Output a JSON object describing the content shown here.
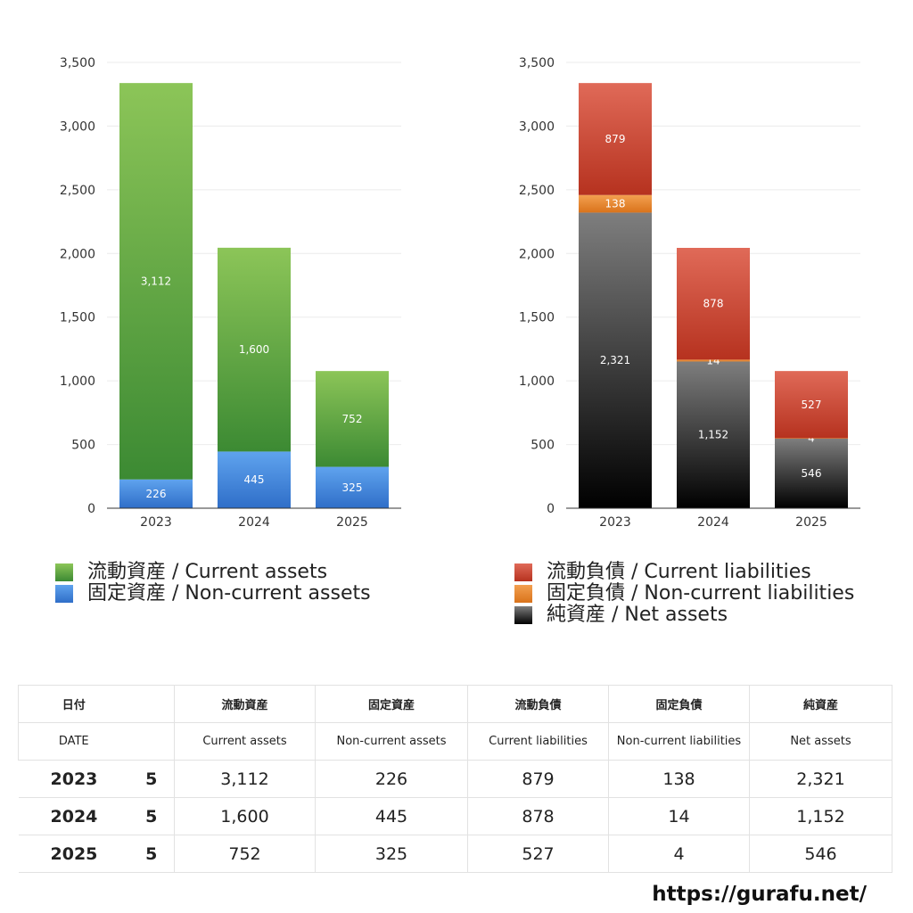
{
  "colors": {
    "current_assets": [
      "#8cc558",
      "#3c8a33"
    ],
    "noncurrent_assets": [
      "#5fa3ee",
      "#2f6ec8"
    ],
    "current_liabilities": [
      "#e06a58",
      "#b6321f"
    ],
    "noncurrent_liabilities": [
      "#f3a050",
      "#d9731b"
    ],
    "net_assets": [
      "#7e7e7e",
      "#000000"
    ]
  },
  "chart_data": [
    {
      "type": "bar",
      "stacked": true,
      "categories": [
        "2023",
        "2024",
        "2025"
      ],
      "series": [
        {
          "name": "固定資産 / Non-current assets",
          "key": "noncurrent_assets",
          "values": [
            226,
            445,
            325
          ],
          "labels": [
            "226",
            "445",
            "325"
          ]
        },
        {
          "name": "流動資産 / Current assets",
          "key": "current_assets",
          "values": [
            3112,
            1600,
            752
          ],
          "labels": [
            "3,112",
            "1,600",
            "752"
          ]
        }
      ],
      "ylim": [
        0,
        3500
      ],
      "yticks": [
        0,
        500,
        1000,
        1500,
        2000,
        2500,
        3000,
        3500
      ],
      "ytick_labels": [
        "0",
        "500",
        "1,000",
        "1,500",
        "2,000",
        "2,500",
        "3,000",
        "3,500"
      ],
      "grid": true,
      "legend_position": "bottom",
      "legend": [
        {
          "label": "流動資産 / Current assets",
          "key": "current_assets"
        },
        {
          "label": "固定資産 / Non-current assets",
          "key": "noncurrent_assets"
        }
      ]
    },
    {
      "type": "bar",
      "stacked": true,
      "categories": [
        "2023",
        "2024",
        "2025"
      ],
      "series": [
        {
          "name": "純資産 / Net assets",
          "key": "net_assets",
          "values": [
            2321,
            1152,
            546
          ],
          "labels": [
            "2,321",
            "1,152",
            "546"
          ]
        },
        {
          "name": "固定負債 / Non-current liabilities",
          "key": "noncurrent_liabilities",
          "values": [
            138,
            14,
            4
          ],
          "labels": [
            "138",
            "14",
            "4"
          ]
        },
        {
          "name": "流動負債 / Current liabilities",
          "key": "current_liabilities",
          "values": [
            879,
            878,
            527
          ],
          "labels": [
            "879",
            "878",
            "527"
          ]
        }
      ],
      "ylim": [
        0,
        3500
      ],
      "yticks": [
        0,
        500,
        1000,
        1500,
        2000,
        2500,
        3000,
        3500
      ],
      "ytick_labels": [
        "0",
        "500",
        "1,000",
        "1,500",
        "2,000",
        "2,500",
        "3,000",
        "3,500"
      ],
      "grid": true,
      "legend_position": "bottom",
      "legend": [
        {
          "label": "流動負債 / Current liabilities",
          "key": "current_liabilities"
        },
        {
          "label": "固定負債 / Non-current liabilities",
          "key": "noncurrent_liabilities"
        },
        {
          "label": "純資産 / Net assets",
          "key": "net_assets"
        }
      ]
    }
  ],
  "table": {
    "headers": [
      "日付",
      "",
      "流動資産",
      "固定資産",
      "流動負債",
      "固定負債",
      "純資産"
    ],
    "subheaders": [
      "DATE",
      "",
      "Current assets",
      "Non-current assets",
      "Current liabilities",
      "Non-current liabilities",
      "Net assets"
    ],
    "rows": [
      [
        "2023",
        "5",
        "3,112",
        "226",
        "879",
        "138",
        "2,321"
      ],
      [
        "2024",
        "5",
        "1,600",
        "445",
        "878",
        "14",
        "1,152"
      ],
      [
        "2025",
        "5",
        "752",
        "325",
        "527",
        "4",
        "546"
      ]
    ]
  },
  "footer": {
    "url": "https://gurafu.net/"
  }
}
